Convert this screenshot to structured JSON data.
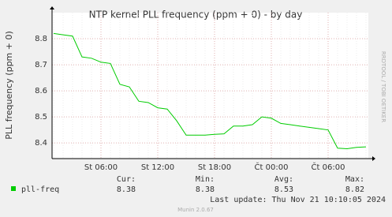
{
  "chart_data": {
    "type": "line",
    "title": "NTP kernel PLL frequency (ppm + 0) - by day",
    "y_label": "PLL frequency (ppm + 0)",
    "side_label": "RRDTOOL / TOBI OETIKER",
    "categories": [
      null,
      null,
      null,
      null,
      null,
      "St 06:00",
      null,
      null,
      null,
      null,
      null,
      "St 12:00",
      null,
      null,
      null,
      null,
      null,
      "St 18:00",
      null,
      null,
      null,
      null,
      null,
      "Čt 00:00",
      null,
      null,
      null,
      null,
      null,
      "Čt 06:00",
      null,
      null,
      null,
      null
    ],
    "series": [
      {
        "name": "pll-freq",
        "color": "#00cc00",
        "values": [
          8.82,
          8.815,
          8.81,
          8.73,
          8.725,
          8.71,
          8.705,
          8.625,
          8.615,
          8.56,
          8.555,
          8.535,
          8.53,
          8.485,
          8.43,
          8.43,
          8.43,
          8.433,
          8.435,
          8.465,
          8.465,
          8.47,
          8.5,
          8.495,
          8.475,
          8.47,
          8.465,
          8.46,
          8.455,
          8.45,
          8.38,
          8.378,
          8.383,
          8.385
        ]
      }
    ],
    "ylim": [
      8.34,
      8.9
    ],
    "yticks": [
      8.4,
      8.5,
      8.6,
      8.7,
      8.8
    ],
    "grid": true,
    "legend_stats": {
      "labels": [
        "Cur:",
        "Min:",
        "Avg:",
        "Max:"
      ],
      "values": [
        8.38,
        8.38,
        8.53,
        8.82
      ]
    },
    "last_update": "Last update: Thu Nov 21 10:10:05 2024",
    "footer": "Munin 2.0.67"
  }
}
